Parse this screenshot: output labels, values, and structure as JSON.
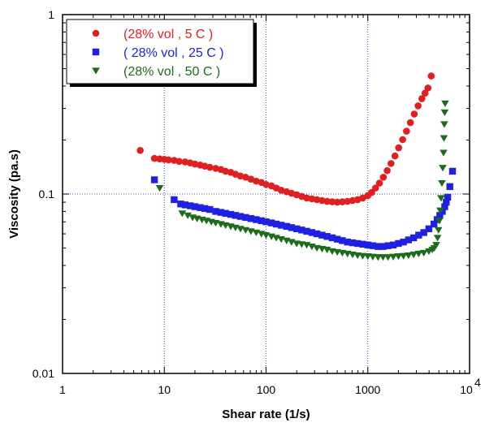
{
  "chart_data": {
    "type": "scatter",
    "title": "",
    "xlabel": "Shear rate (1/s)",
    "ylabel": "Viscosity (pa.s)",
    "x_scale": "log",
    "y_scale": "log",
    "xlim": [
      1,
      10000
    ],
    "ylim": [
      0.01,
      1
    ],
    "x_ticks": [
      {
        "value": 1,
        "label": "1"
      },
      {
        "value": 10,
        "label": "10"
      },
      {
        "value": 100,
        "label": "100"
      },
      {
        "value": 1000,
        "label": "1000"
      }
    ],
    "x_max_tick": {
      "value": 10000,
      "base": "10",
      "exponent": "4"
    },
    "y_ticks": [
      {
        "value": 0.01,
        "label": "0.01"
      },
      {
        "value": 0.1,
        "label": "0.1"
      },
      {
        "value": 1,
        "label": "1"
      }
    ],
    "grid": true,
    "legend_position": "top-left",
    "series": [
      {
        "name": "(28% vol , 5 C )",
        "color": "#e02020",
        "marker": "circle",
        "points": [
          [
            5.8,
            0.175
          ],
          [
            8,
            0.158
          ],
          [
            9,
            0.157
          ],
          [
            10,
            0.156
          ],
          [
            11,
            0.155
          ],
          [
            12.5,
            0.154
          ],
          [
            14,
            0.152
          ],
          [
            16,
            0.151
          ],
          [
            18,
            0.149
          ],
          [
            20,
            0.147
          ],
          [
            22.5,
            0.145
          ],
          [
            25,
            0.143
          ],
          [
            28,
            0.141
          ],
          [
            32,
            0.139
          ],
          [
            36,
            0.137
          ],
          [
            40,
            0.134
          ],
          [
            45,
            0.132
          ],
          [
            50,
            0.129
          ],
          [
            56,
            0.126
          ],
          [
            63,
            0.124
          ],
          [
            71,
            0.121
          ],
          [
            80,
            0.118
          ],
          [
            90,
            0.116
          ],
          [
            100,
            0.113
          ],
          [
            113,
            0.111
          ],
          [
            126,
            0.108
          ],
          [
            141,
            0.105
          ],
          [
            159,
            0.103
          ],
          [
            178,
            0.101
          ],
          [
            200,
            0.099
          ],
          [
            224,
            0.097
          ],
          [
            251,
            0.095
          ],
          [
            282,
            0.094
          ],
          [
            316,
            0.093
          ],
          [
            355,
            0.092
          ],
          [
            398,
            0.091
          ],
          [
            447,
            0.0905
          ],
          [
            501,
            0.09
          ],
          [
            562,
            0.0905
          ],
          [
            631,
            0.091
          ],
          [
            708,
            0.092
          ],
          [
            794,
            0.093
          ],
          [
            891,
            0.095
          ],
          [
            1000,
            0.098
          ],
          [
            1090,
            0.102
          ],
          [
            1190,
            0.108
          ],
          [
            1300,
            0.115
          ],
          [
            1420,
            0.124
          ],
          [
            1550,
            0.135
          ],
          [
            1690,
            0.148
          ],
          [
            1850,
            0.163
          ],
          [
            2010,
            0.181
          ],
          [
            2200,
            0.201
          ],
          [
            2400,
            0.224
          ],
          [
            2620,
            0.25
          ],
          [
            2860,
            0.279
          ],
          [
            3120,
            0.31
          ],
          [
            3400,
            0.34
          ],
          [
            3650,
            0.365
          ],
          [
            3900,
            0.39
          ],
          [
            4200,
            0.455
          ]
        ]
      },
      {
        "name": "( 28% vol , 25 C )",
        "color": "#2020e0",
        "marker": "square",
        "points": [
          [
            8,
            0.12
          ],
          [
            12.5,
            0.093
          ],
          [
            14.5,
            0.088
          ],
          [
            16,
            0.087
          ],
          [
            18,
            0.086
          ],
          [
            20,
            0.085
          ],
          [
            22.5,
            0.084
          ],
          [
            25,
            0.083
          ],
          [
            28,
            0.082
          ],
          [
            32,
            0.08
          ],
          [
            36,
            0.079
          ],
          [
            40,
            0.078
          ],
          [
            45,
            0.077
          ],
          [
            50,
            0.076
          ],
          [
            56,
            0.075
          ],
          [
            63,
            0.074
          ],
          [
            71,
            0.073
          ],
          [
            80,
            0.072
          ],
          [
            90,
            0.071
          ],
          [
            100,
            0.07
          ],
          [
            113,
            0.069
          ],
          [
            126,
            0.068
          ],
          [
            141,
            0.067
          ],
          [
            159,
            0.066
          ],
          [
            178,
            0.065
          ],
          [
            200,
            0.064
          ],
          [
            224,
            0.063
          ],
          [
            251,
            0.062
          ],
          [
            282,
            0.061
          ],
          [
            316,
            0.06
          ],
          [
            355,
            0.059
          ],
          [
            398,
            0.058
          ],
          [
            447,
            0.057
          ],
          [
            501,
            0.056
          ],
          [
            562,
            0.055
          ],
          [
            631,
            0.054
          ],
          [
            708,
            0.0535
          ],
          [
            794,
            0.053
          ],
          [
            891,
            0.0525
          ],
          [
            1000,
            0.052
          ],
          [
            1120,
            0.0515
          ],
          [
            1260,
            0.051
          ],
          [
            1410,
            0.051
          ],
          [
            1580,
            0.0515
          ],
          [
            1780,
            0.052
          ],
          [
            2000,
            0.053
          ],
          [
            2240,
            0.054
          ],
          [
            2510,
            0.0555
          ],
          [
            2820,
            0.057
          ],
          [
            3160,
            0.059
          ],
          [
            3550,
            0.061
          ],
          [
            3980,
            0.064
          ],
          [
            4470,
            0.068
          ],
          [
            4800,
            0.072
          ],
          [
            5100,
            0.076
          ],
          [
            5400,
            0.08
          ],
          [
            5700,
            0.085
          ],
          [
            5900,
            0.09
          ],
          [
            6100,
            0.096
          ],
          [
            6400,
            0.11
          ],
          [
            6800,
            0.134
          ]
        ]
      },
      {
        "name": "(28% vol , 50 C )",
        "color": "#1d6b1d",
        "marker": "triangle-down",
        "points": [
          [
            9,
            0.108
          ],
          [
            15,
            0.078
          ],
          [
            17,
            0.076
          ],
          [
            19,
            0.074
          ],
          [
            21,
            0.073
          ],
          [
            23.5,
            0.072
          ],
          [
            26,
            0.071
          ],
          [
            29,
            0.07
          ],
          [
            32,
            0.069
          ],
          [
            36,
            0.068
          ],
          [
            40,
            0.067
          ],
          [
            45,
            0.066
          ],
          [
            50,
            0.065
          ],
          [
            56,
            0.064
          ],
          [
            63,
            0.063
          ],
          [
            71,
            0.062
          ],
          [
            80,
            0.061
          ],
          [
            90,
            0.06
          ],
          [
            100,
            0.059
          ],
          [
            113,
            0.058
          ],
          [
            126,
            0.057
          ],
          [
            141,
            0.056
          ],
          [
            159,
            0.055
          ],
          [
            178,
            0.054
          ],
          [
            200,
            0.053
          ],
          [
            224,
            0.0525
          ],
          [
            251,
            0.052
          ],
          [
            282,
            0.051
          ],
          [
            316,
            0.05
          ],
          [
            355,
            0.0495
          ],
          [
            398,
            0.049
          ],
          [
            447,
            0.048
          ],
          [
            501,
            0.0475
          ],
          [
            562,
            0.047
          ],
          [
            631,
            0.0465
          ],
          [
            708,
            0.046
          ],
          [
            794,
            0.0455
          ],
          [
            891,
            0.0452
          ],
          [
            1000,
            0.045
          ],
          [
            1120,
            0.0447
          ],
          [
            1260,
            0.0445
          ],
          [
            1410,
            0.0445
          ],
          [
            1580,
            0.0445
          ],
          [
            1780,
            0.0447
          ],
          [
            2000,
            0.045
          ],
          [
            2240,
            0.0452
          ],
          [
            2510,
            0.0455
          ],
          [
            2820,
            0.046
          ],
          [
            3160,
            0.0465
          ],
          [
            3550,
            0.047
          ],
          [
            3980,
            0.048
          ],
          [
            4300,
            0.049
          ],
          [
            4500,
            0.05
          ],
          [
            4700,
            0.052
          ],
          [
            4850,
            0.057
          ],
          [
            4950,
            0.063
          ],
          [
            5050,
            0.071
          ],
          [
            5150,
            0.081
          ],
          [
            5250,
            0.095
          ],
          [
            5350,
            0.115
          ],
          [
            5450,
            0.14
          ],
          [
            5550,
            0.17
          ],
          [
            5600,
            0.205
          ],
          [
            5650,
            0.245
          ],
          [
            5700,
            0.285
          ],
          [
            5750,
            0.32
          ]
        ]
      }
    ]
  }
}
